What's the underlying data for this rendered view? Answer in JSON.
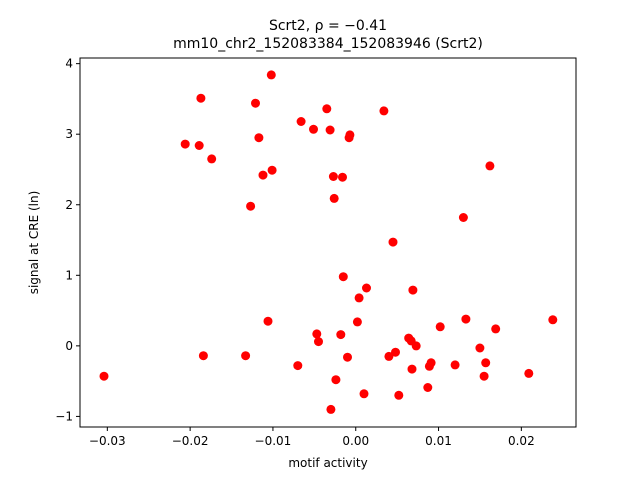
{
  "chart_data": {
    "type": "scatter",
    "title_line1": "Scrt2, ρ = −0.41",
    "title_line2": "mm10_chr2_152083384_152083946 (Scrt2)",
    "xlabel": "motif activity",
    "ylabel": "signal at CRE (ln)",
    "xlim": [
      -0.0333,
      0.0266
    ],
    "ylim": [
      -1.15,
      4.08
    ],
    "grid": false,
    "marker_color": "#ff0000",
    "xticks": [
      -0.03,
      -0.02,
      -0.01,
      0.0,
      0.01,
      0.02
    ],
    "xtick_labels": [
      "−0.03",
      "−0.02",
      "−0.01",
      "0.00",
      "0.01",
      "0.02"
    ],
    "yticks": [
      -1,
      0,
      1,
      2,
      3,
      4
    ],
    "ytick_labels": [
      "−1",
      "0",
      "1",
      "2",
      "3",
      "4"
    ],
    "points": [
      {
        "x": -0.0304,
        "y": -0.43
      },
      {
        "x": -0.0206,
        "y": 2.86
      },
      {
        "x": -0.0189,
        "y": 2.84
      },
      {
        "x": -0.0187,
        "y": 3.51
      },
      {
        "x": -0.0184,
        "y": -0.14
      },
      {
        "x": -0.0174,
        "y": 2.65
      },
      {
        "x": -0.0133,
        "y": -0.14
      },
      {
        "x": -0.0127,
        "y": 1.98
      },
      {
        "x": -0.0121,
        "y": 3.44
      },
      {
        "x": -0.0117,
        "y": 2.95
      },
      {
        "x": -0.0112,
        "y": 2.42
      },
      {
        "x": -0.0106,
        "y": 0.35
      },
      {
        "x": -0.0102,
        "y": 3.84
      },
      {
        "x": -0.0101,
        "y": 2.49
      },
      {
        "x": -0.007,
        "y": -0.28
      },
      {
        "x": -0.0066,
        "y": 3.18
      },
      {
        "x": -0.0051,
        "y": 3.07
      },
      {
        "x": -0.0047,
        "y": 0.17
      },
      {
        "x": -0.0045,
        "y": 0.06
      },
      {
        "x": -0.0035,
        "y": 3.36
      },
      {
        "x": -0.0031,
        "y": 3.06
      },
      {
        "x": -0.003,
        "y": -0.9
      },
      {
        "x": -0.0027,
        "y": 2.4
      },
      {
        "x": -0.0026,
        "y": 2.09
      },
      {
        "x": -0.0024,
        "y": -0.48
      },
      {
        "x": -0.0018,
        "y": 0.16
      },
      {
        "x": -0.0016,
        "y": 2.39
      },
      {
        "x": -0.0015,
        "y": 0.98
      },
      {
        "x": -0.001,
        "y": -0.16
      },
      {
        "x": -0.0008,
        "y": 2.95
      },
      {
        "x": -0.0007,
        "y": 2.99
      },
      {
        "x": 0.0002,
        "y": 0.34
      },
      {
        "x": 0.0004,
        "y": 0.68
      },
      {
        "x": 0.001,
        "y": -0.68
      },
      {
        "x": 0.0013,
        "y": 0.82
      },
      {
        "x": 0.0034,
        "y": 3.33
      },
      {
        "x": 0.004,
        "y": -0.15
      },
      {
        "x": 0.0045,
        "y": 1.47
      },
      {
        "x": 0.0048,
        "y": -0.09
      },
      {
        "x": 0.0052,
        "y": -0.7
      },
      {
        "x": 0.0064,
        "y": 0.11
      },
      {
        "x": 0.0067,
        "y": 0.07
      },
      {
        "x": 0.0068,
        "y": -0.33
      },
      {
        "x": 0.0069,
        "y": 0.79
      },
      {
        "x": 0.0073,
        "y": 0.0
      },
      {
        "x": 0.0087,
        "y": -0.59
      },
      {
        "x": 0.0089,
        "y": -0.29
      },
      {
        "x": 0.0091,
        "y": -0.24
      },
      {
        "x": 0.0102,
        "y": 0.27
      },
      {
        "x": 0.012,
        "y": -0.27
      },
      {
        "x": 0.013,
        "y": 1.82
      },
      {
        "x": 0.0133,
        "y": 0.38
      },
      {
        "x": 0.015,
        "y": -0.03
      },
      {
        "x": 0.0155,
        "y": -0.43
      },
      {
        "x": 0.0157,
        "y": -0.24
      },
      {
        "x": 0.0162,
        "y": 2.55
      },
      {
        "x": 0.0169,
        "y": 0.24
      },
      {
        "x": 0.0209,
        "y": -0.39
      },
      {
        "x": 0.0238,
        "y": 0.37
      }
    ]
  }
}
